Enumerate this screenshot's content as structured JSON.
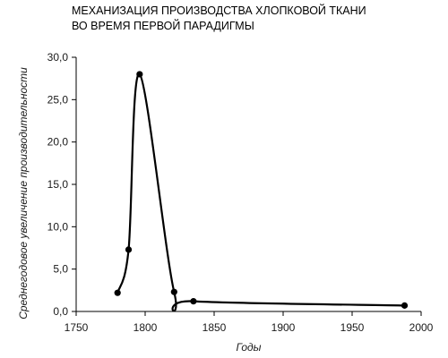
{
  "chart_data": {
    "type": "line",
    "title_lines": [
      "МЕХАНИЗАЦИЯ ПРОИЗВОДСТВА ХЛОПКОВОЙ ТКАНИ",
      "ВО ВРЕМЯ ПЕРВОЙ ПАРАДИГМЫ"
    ],
    "xlabel": "Годы",
    "ylabel": "Среднегодовое увеличение производительности",
    "xlim": [
      1750,
      2000
    ],
    "ylim": [
      0,
      30
    ],
    "x_ticks": [
      {
        "value": 1750,
        "label": "1750"
      },
      {
        "value": 1800,
        "label": "1800"
      },
      {
        "value": 1850,
        "label": "1850"
      },
      {
        "value": 1900,
        "label": "1900"
      },
      {
        "value": 1950,
        "label": "1950"
      },
      {
        "value": 2000,
        "label": "2000"
      }
    ],
    "y_ticks": [
      {
        "value": 0,
        "label": "0,0"
      },
      {
        "value": 5,
        "label": "5,0"
      },
      {
        "value": 10,
        "label": "10,0"
      },
      {
        "value": 15,
        "label": "15,0"
      },
      {
        "value": 20,
        "label": "20,0"
      },
      {
        "value": 25,
        "label": "25,0"
      },
      {
        "value": 30,
        "label": "30,0"
      }
    ],
    "grid": false,
    "series": [
      {
        "x": [
          1780,
          1788,
          1796,
          1821,
          1835,
          1988
        ],
        "y": [
          2.2,
          7.3,
          28.0,
          2.3,
          1.2,
          0.7
        ],
        "line_color": "#000000",
        "marker_color": "#000000"
      }
    ]
  }
}
